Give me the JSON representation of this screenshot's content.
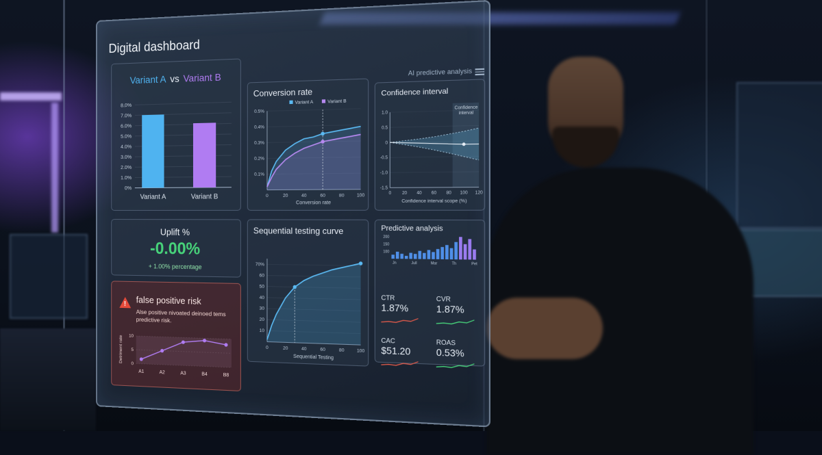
{
  "panel": {
    "title": "Digital dashboard",
    "ai_label": "AI predictive analysis"
  },
  "ab_test": {
    "variant_a": "Variant A",
    "vs": "vs",
    "variant_b": "Variant B",
    "colors": {
      "a": "#4fb3f0",
      "b": "#b07cf2"
    }
  },
  "uplift": {
    "title": "Uplift %",
    "value": "-0.00%",
    "subtitle": "+ 1.00% percentage"
  },
  "false_positive": {
    "title": "false positive risk",
    "description": "Alse positive nivoated deinoed tems predictive risk."
  },
  "predictive": {
    "title": "Predictive analysis",
    "kpis": [
      {
        "label": "CTR",
        "value": "1.87%",
        "color": "#e05a4a"
      },
      {
        "label": "CVR",
        "value": "1.87%",
        "color": "#47d37a"
      },
      {
        "label": "CAC",
        "value": "$51.20",
        "color": "#e05a4a"
      },
      {
        "label": "ROAS",
        "value": "0.53%",
        "color": "#47d37a"
      }
    ]
  },
  "chart_data": [
    {
      "type": "bar",
      "title": "Variant A vs Variant B",
      "categories": [
        "Variant A",
        "Variant B"
      ],
      "values": [
        7.0,
        6.1
      ],
      "yticks": [
        "0%",
        "1.0%",
        "2.0%",
        "3.0%",
        "4.0%",
        "5.0%",
        "6.0%",
        "7.0%",
        "8.0%"
      ],
      "ylim": [
        0,
        8
      ],
      "colors": [
        "#4fb3f0",
        "#b07cf2"
      ]
    },
    {
      "type": "line",
      "title": "Conversion rate",
      "xlabel": "Conversion rate",
      "xlim": [
        0,
        100
      ],
      "ylim": [
        0,
        0.5
      ],
      "xticks": [
        "0",
        "20",
        "40",
        "60",
        "80",
        "100"
      ],
      "yticks": [
        "0.1%",
        "0.2%",
        "0.3%",
        "0.4%",
        "0.5%"
      ],
      "x": [
        0,
        5,
        10,
        20,
        30,
        40,
        50,
        60,
        70,
        80,
        90,
        100
      ],
      "series": [
        {
          "name": "Variant A",
          "values": [
            0.02,
            0.12,
            0.18,
            0.25,
            0.29,
            0.32,
            0.33,
            0.35,
            0.36,
            0.37,
            0.38,
            0.39
          ]
        },
        {
          "name": "Variant B",
          "values": [
            0.02,
            0.08,
            0.13,
            0.19,
            0.23,
            0.26,
            0.28,
            0.3,
            0.31,
            0.32,
            0.33,
            0.34
          ]
        }
      ],
      "marker_x": 60
    },
    {
      "type": "line",
      "title": "Confidence interval",
      "xlabel": "Confidence interval scope (%)",
      "annotation": "Confidence interval",
      "xlim": [
        0,
        120
      ],
      "ylim": [
        -1.5,
        1.0
      ],
      "xticks": [
        "0",
        "20",
        "40",
        "60",
        "80",
        "100",
        "120"
      ],
      "yticks": [
        "1.0",
        "0.5",
        "0",
        "-0.5",
        "-1.0",
        "-1.5"
      ],
      "x": [
        0,
        20,
        40,
        60,
        80,
        100,
        120
      ],
      "series": [
        {
          "name": "upper",
          "values": [
            0.0,
            0.05,
            0.1,
            0.16,
            0.24,
            0.32,
            0.42
          ]
        },
        {
          "name": "mean",
          "values": [
            0.0,
            -0.02,
            -0.04,
            -0.06,
            -0.08,
            -0.1,
            -0.1
          ]
        },
        {
          "name": "lower",
          "values": [
            0.0,
            -0.08,
            -0.17,
            -0.27,
            -0.38,
            -0.5,
            -0.62
          ]
        }
      ]
    },
    {
      "type": "area",
      "title": "Sequential testing curve",
      "xlabel": "Sequential Testing",
      "xlim": [
        0,
        100
      ],
      "ylim": [
        0,
        70
      ],
      "xticks": [
        "0",
        "20",
        "40",
        "60",
        "80",
        "100"
      ],
      "yticks": [
        "10",
        "20",
        "30",
        "40",
        "50",
        "60",
        "70%"
      ],
      "x": [
        0,
        5,
        10,
        20,
        30,
        40,
        50,
        60,
        70,
        80,
        90,
        100
      ],
      "values": [
        2,
        15,
        25,
        40,
        50,
        56,
        60,
        63,
        66,
        68,
        70,
        72
      ],
      "marker_x": 30
    },
    {
      "type": "line",
      "title": "false positive risk",
      "ylabel": "Detriment rate",
      "categories": [
        "A1",
        "A2",
        "A3",
        "B4",
        "B8"
      ],
      "yticks": [
        "10",
        "5",
        "0"
      ],
      "values": [
        2,
        6,
        10,
        11,
        9.5
      ],
      "ylim": [
        0,
        12
      ]
    },
    {
      "type": "bar",
      "title": "Predictive analysis",
      "values": [
        4,
        7,
        5,
        3,
        6,
        5,
        8,
        6,
        9,
        7,
        10,
        12,
        14,
        11,
        17,
        22,
        15,
        20,
        10
      ],
      "yticks": [
        "200",
        "150",
        "100"
      ],
      "xticks": [
        "Jn",
        "Jull",
        "Mar",
        "Th",
        "Pet"
      ]
    }
  ]
}
